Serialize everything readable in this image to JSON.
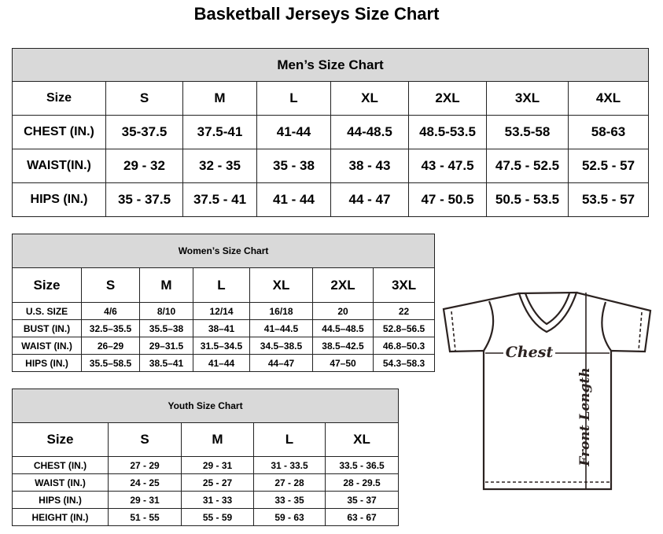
{
  "title": "Basketball Jerseys Size Chart",
  "men": {
    "heading": "Men’s Size Chart",
    "header": [
      "Size",
      "S",
      "M",
      "L",
      "XL",
      "2XL",
      "3XL",
      "4XL"
    ],
    "rows": [
      [
        "CHEST (IN.)",
        "35-37.5",
        "37.5-41",
        "41-44",
        "44-48.5",
        "48.5-53.5",
        "53.5-58",
        "58-63"
      ],
      [
        "WAIST(IN.)",
        "29 - 32",
        "32 - 35",
        "35 - 38",
        "38 - 43",
        "43 - 47.5",
        "47.5 - 52.5",
        "52.5 - 57"
      ],
      [
        "HIPS (IN.)",
        "35 - 37.5",
        "37.5 - 41",
        "41 - 44",
        "44 - 47",
        "47 - 50.5",
        "50.5 - 53.5",
        "53.5 - 57"
      ]
    ]
  },
  "women": {
    "heading": "Women’s Size Chart",
    "header": [
      "Size",
      "S",
      "M",
      "L",
      "XL",
      "2XL",
      "3XL"
    ],
    "rows": [
      [
        "U.S. SIZE",
        "4/6",
        "8/10",
        "12/14",
        "16/18",
        "20",
        "22"
      ],
      [
        "BUST (IN.)",
        "32.5–35.5",
        "35.5–38",
        "38–41",
        "41–44.5",
        "44.5–48.5",
        "52.8–56.5"
      ],
      [
        "WAIST (IN.)",
        "26–29",
        "29–31.5",
        "31.5–34.5",
        "34.5–38.5",
        "38.5–42.5",
        "46.8–50.3"
      ],
      [
        "HIPS (IN.)",
        "35.5–58.5",
        "38.5–41",
        "41–44",
        "44–47",
        "47–50",
        "54.3–58.3"
      ]
    ]
  },
  "youth": {
    "heading": "Youth Size Chart",
    "header": [
      "Size",
      "S",
      "M",
      "L",
      "XL"
    ],
    "rows": [
      [
        "CHEST (IN.)",
        "27 - 29",
        "29 - 31",
        "31 - 33.5",
        "33.5 - 36.5"
      ],
      [
        "WAIST (IN.)",
        "24 - 25",
        "25 - 27",
        "27 - 28",
        "28 - 29.5"
      ],
      [
        "HIPS (IN.)",
        "29 - 31",
        "31 - 33",
        "33 - 35",
        "35 - 37"
      ],
      [
        "HEIGHT (IN.)",
        "51 - 55",
        "55 - 59",
        "59 - 63",
        "63 - 67"
      ]
    ]
  },
  "diagram": {
    "chest_label": "Chest",
    "length_label": "Front Length"
  }
}
